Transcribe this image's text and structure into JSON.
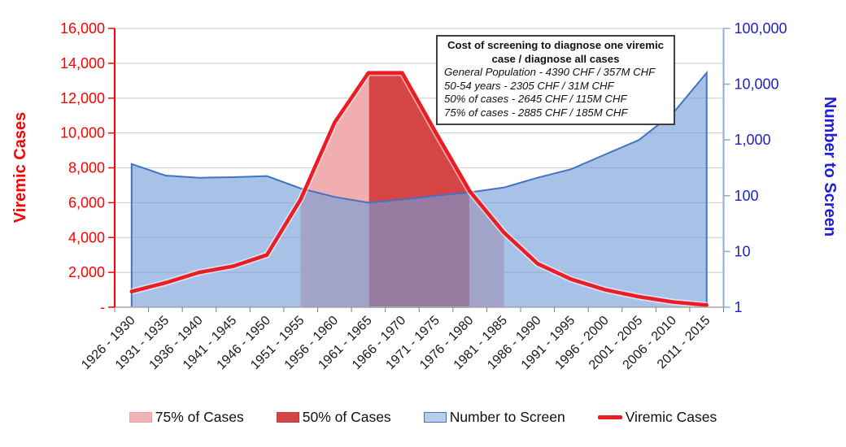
{
  "chart_data": {
    "type": "area",
    "subtype": "combo-area-line-dual-axis",
    "categories": [
      "1926 - 1930",
      "1931 - 1935",
      "1936 - 1940",
      "1941 - 1945",
      "1946 - 1950",
      "1951 - 1955",
      "1956 - 1960",
      "1961 - 1965",
      "1966 - 1970",
      "1971 - 1975",
      "1976 - 1980",
      "1981 - 1985",
      "1986 - 1990",
      "1991 - 1995",
      "1996 - 2000",
      "2001 - 2005",
      "2006 - 2010",
      "2011 - 2015"
    ],
    "series": [
      {
        "name": "75% of Cases",
        "type": "area",
        "axis": "left",
        "color": "#f0aeb0",
        "values": [
          null,
          null,
          null,
          null,
          null,
          6200,
          10600,
          13450,
          13450,
          10000,
          6650,
          4300,
          null,
          null,
          null,
          null,
          null,
          null
        ]
      },
      {
        "name": "50% of Cases",
        "type": "area",
        "axis": "left",
        "color": "#d64545",
        "values": [
          null,
          null,
          null,
          null,
          null,
          null,
          null,
          13450,
          13450,
          10000,
          6650,
          null,
          null,
          null,
          null,
          null,
          null,
          null
        ]
      },
      {
        "name": "Number to Screen",
        "type": "area",
        "axis": "right",
        "color": "#729dd9",
        "edge_color": "#4472c4",
        "values": [
          370,
          230,
          210,
          215,
          225,
          135,
          95,
          75,
          85,
          100,
          115,
          140,
          210,
          300,
          550,
          1000,
          3000,
          16000
        ]
      },
      {
        "name": "Viremic Cases",
        "type": "line",
        "axis": "left",
        "color": "#ec1c24",
        "values": [
          900,
          1400,
          2000,
          2350,
          3000,
          6200,
          10600,
          13450,
          13450,
          10000,
          6650,
          4300,
          2500,
          1600,
          1000,
          600,
          300,
          120
        ]
      }
    ],
    "left_axis": {
      "title": "Viremic Cases",
      "color": "#ff0000",
      "min": 0,
      "max": 16000,
      "tick_step": 2000,
      "tick_labels": [
        "16,000",
        "14,000",
        "12,000",
        "10,000",
        "8,000",
        "6,000",
        "4,000",
        "2,000",
        "-"
      ]
    },
    "right_axis": {
      "title": "Number to Screen",
      "color": "#2020d0",
      "scale": "log",
      "min": 1,
      "max": 100000,
      "tick_labels": [
        "100,000",
        "10,000",
        "1,000",
        "100",
        "10",
        "1"
      ]
    },
    "grid": "horizontal-on",
    "legend_position": "bottom",
    "annotation": {
      "title": "Cost of screening to diagnose one viremic case / diagnose all cases",
      "lines": [
        "General Population - 4390 CHF / 357M CHF",
        "50-54 years - 2305 CHF / 31M CHF",
        "50% of cases - 2645 CHF / 115M CHF",
        "75% of cases - 2885 CHF / 185M CHF"
      ]
    }
  }
}
